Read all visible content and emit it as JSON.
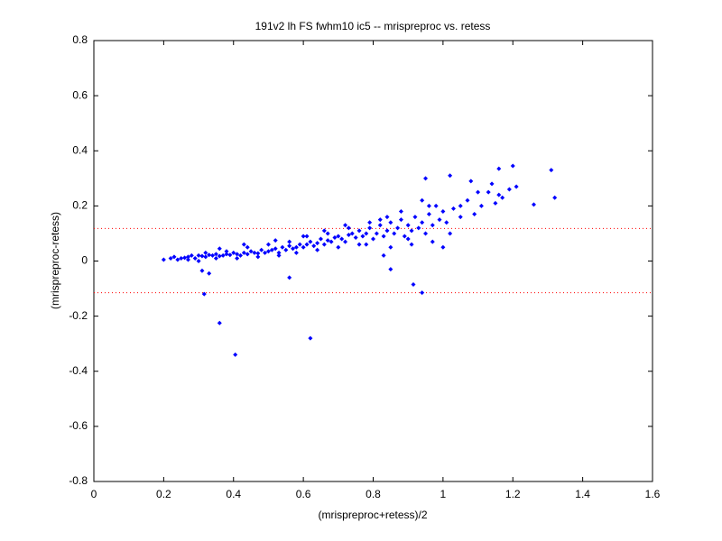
{
  "chart_data": {
    "type": "scatter",
    "title": "191v2 lh FS fwhm10 ic5 -- mrispreproc vs. retess",
    "x_label": "(mrispreproc+retess)/2",
    "y_label": "(mrispreproc-retess)",
    "xlim": [
      0,
      1.6
    ],
    "ylim": [
      -0.8,
      0.8
    ],
    "xticks": [
      0,
      0.2,
      0.4,
      0.6,
      0.8,
      1,
      1.2,
      1.4,
      1.6
    ],
    "yticks": [
      -0.8,
      -0.6,
      -0.4,
      -0.2,
      0,
      0.2,
      0.4,
      0.6,
      0.8
    ],
    "color": "#0000ff",
    "hlines": [
      {
        "value": 0.118,
        "color": "#ff0000"
      },
      {
        "value": -0.115,
        "color": "#ff0000"
      }
    ],
    "x": [
      0.2,
      0.22,
      0.23,
      0.24,
      0.25,
      0.26,
      0.27,
      0.28,
      0.29,
      0.3,
      0.31,
      0.32,
      0.33,
      0.34,
      0.35,
      0.36,
      0.37,
      0.38,
      0.39,
      0.4,
      0.41,
      0.42,
      0.43,
      0.44,
      0.45,
      0.46,
      0.47,
      0.48,
      0.49,
      0.5,
      0.51,
      0.52,
      0.53,
      0.54,
      0.55,
      0.56,
      0.57,
      0.58,
      0.59,
      0.6,
      0.61,
      0.62,
      0.63,
      0.64,
      0.65,
      0.66,
      0.67,
      0.68,
      0.69,
      0.7,
      0.71,
      0.72,
      0.73,
      0.74,
      0.75,
      0.76,
      0.77,
      0.78,
      0.79,
      0.8,
      0.81,
      0.82,
      0.83,
      0.84,
      0.85,
      0.86,
      0.87,
      0.88,
      0.89,
      0.9,
      0.91,
      0.92,
      0.93,
      0.94,
      0.95,
      0.96,
      0.97,
      0.98,
      0.99,
      1.0,
      1.01,
      1.03,
      1.05,
      1.07,
      1.09,
      1.11,
      1.13,
      1.15,
      1.17,
      1.19,
      0.27,
      0.3,
      0.32,
      0.35,
      0.38,
      0.41,
      0.44,
      0.47,
      0.5,
      0.53,
      0.56,
      0.58,
      0.61,
      0.64,
      0.67,
      0.7,
      0.73,
      0.76,
      0.79,
      0.82,
      0.85,
      0.88,
      0.91,
      0.94,
      0.97,
      1.0,
      0.36,
      0.43,
      0.52,
      0.6,
      0.66,
      0.72,
      0.78,
      0.84,
      0.9,
      0.96,
      1.02,
      0.316,
      0.36,
      0.405,
      0.62,
      0.94,
      0.915,
      0.85,
      1.2,
      1.16,
      1.31,
      1.32,
      1.26,
      1.21,
      1.02,
      0.95,
      1.08,
      1.14,
      1.16,
      1.05,
      1.1,
      0.31,
      0.33,
      0.56,
      0.83
    ],
    "values": [
      0.005,
      0.01,
      0.015,
      0.005,
      0.01,
      0.012,
      0.015,
      0.02,
      0.01,
      0.02,
      0.018,
      0.015,
      0.022,
      0.02,
      0.025,
      0.018,
      0.02,
      0.025,
      0.022,
      0.03,
      0.025,
      0.02,
      0.03,
      0.025,
      0.035,
      0.03,
      0.028,
      0.04,
      0.03,
      0.035,
      0.04,
      0.045,
      0.03,
      0.05,
      0.04,
      0.055,
      0.045,
      0.05,
      0.06,
      0.05,
      0.06,
      0.07,
      0.055,
      0.065,
      0.08,
      0.06,
      0.075,
      0.07,
      0.085,
      0.09,
      0.08,
      0.07,
      0.095,
      0.1,
      0.085,
      0.11,
      0.09,
      0.1,
      0.12,
      0.08,
      0.1,
      0.13,
      0.09,
      0.11,
      0.14,
      0.1,
      0.12,
      0.15,
      0.09,
      0.13,
      0.11,
      0.16,
      0.12,
      0.14,
      0.1,
      0.17,
      0.13,
      0.2,
      0.15,
      0.18,
      0.14,
      0.19,
      0.16,
      0.22,
      0.17,
      0.2,
      0.25,
      0.21,
      0.23,
      0.26,
      0.005,
      0.0,
      0.03,
      0.01,
      0.035,
      0.01,
      0.05,
      0.015,
      0.06,
      0.02,
      0.07,
      0.03,
      0.09,
      0.04,
      0.1,
      0.05,
      0.12,
      0.06,
      0.14,
      0.15,
      0.05,
      0.18,
      0.06,
      0.22,
      0.07,
      0.05,
      0.045,
      0.06,
      0.075,
      0.09,
      0.11,
      0.13,
      0.06,
      0.16,
      0.08,
      0.2,
      0.1,
      -0.12,
      -0.225,
      -0.34,
      -0.28,
      -0.115,
      -0.085,
      -0.03,
      0.345,
      0.335,
      0.33,
      0.23,
      0.205,
      0.27,
      0.31,
      0.3,
      0.29,
      0.28,
      0.24,
      0.2,
      0.25,
      -0.035,
      -0.045,
      -0.06,
      0.02
    ]
  }
}
